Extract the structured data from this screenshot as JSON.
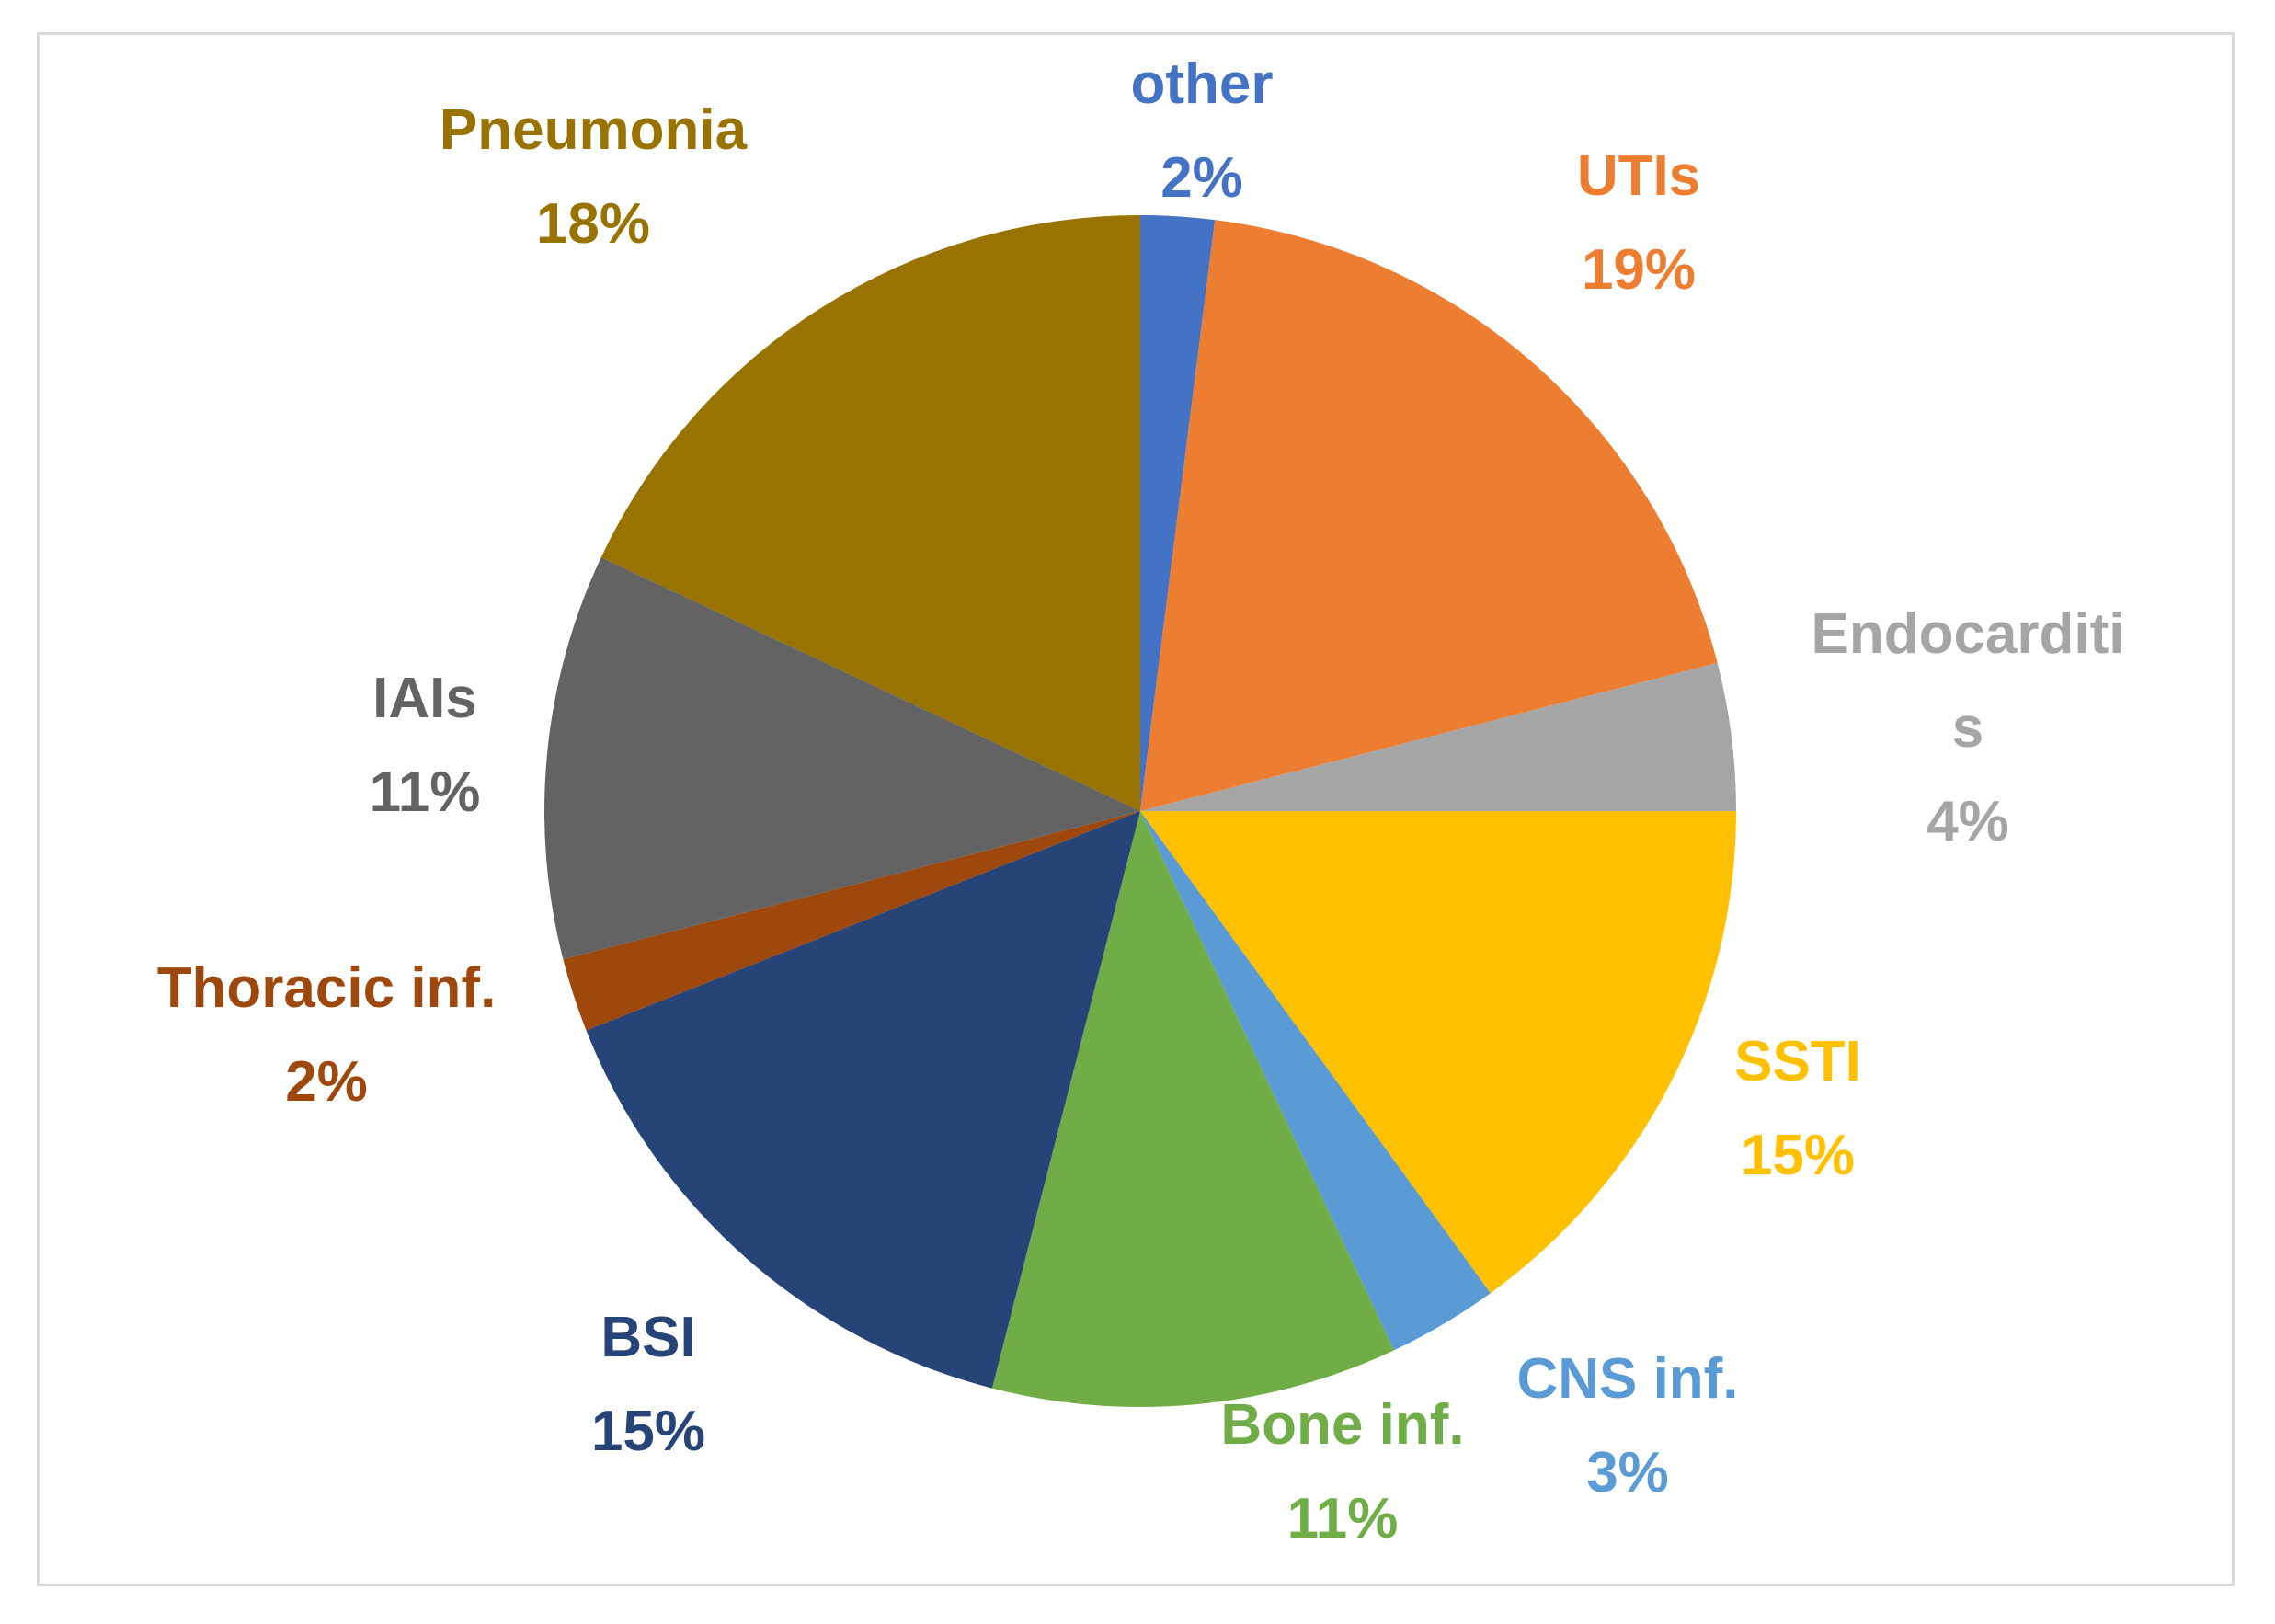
{
  "chart_data": {
    "type": "pie",
    "start_angle_deg": 0,
    "direction": "clockwise",
    "slices": [
      {
        "label": "other",
        "value": 2,
        "value_label": "2%",
        "color": "#4472C4"
      },
      {
        "label": "UTIs",
        "value": 19,
        "value_label": "19%",
        "color": "#ED7D31"
      },
      {
        "label": "Endocarditi\ns",
        "value": 4,
        "value_label": "4%",
        "color": "#A5A5A5"
      },
      {
        "label": "SSTI",
        "value": 15,
        "value_label": "15%",
        "color": "#FFC000"
      },
      {
        "label": "CNS inf.",
        "value": 3,
        "value_label": "3%",
        "color": "#5B9BD5"
      },
      {
        "label": "Bone inf.",
        "value": 11,
        "value_label": "11%",
        "color": "#70AD47"
      },
      {
        "label": "BSI",
        "value": 15,
        "value_label": "15%",
        "color": "#264478"
      },
      {
        "label": "Thoracic inf.",
        "value": 2,
        "value_label": "2%",
        "color": "#9E480E"
      },
      {
        "label": "IAIs",
        "value": 11,
        "value_label": "11%",
        "color": "#636363"
      },
      {
        "label": "Pneumonia",
        "value": 18,
        "value_label": "18%",
        "color": "#997300"
      }
    ]
  }
}
